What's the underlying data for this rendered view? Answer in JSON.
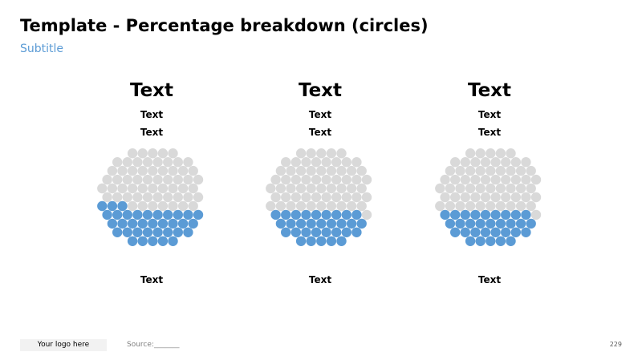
{
  "title": "Template - Percentage breakdown (circles)",
  "subtitle": "Subtitle",
  "colors": {
    "filled": "#5b9bd5",
    "empty": "#d9d9d9",
    "subtitle": "#5b9bd5"
  },
  "columns": [
    {
      "heading": "Text",
      "line1": "Text",
      "line2": "Text",
      "footer": "Text",
      "filled_fraction": 0.37
    },
    {
      "heading": "Text",
      "line1": "Text",
      "line2": "Text",
      "footer": "Text",
      "filled_fraction": 0.33
    },
    {
      "heading": "Text",
      "line1": "Text",
      "line2": "Text",
      "footer": "Text",
      "filled_fraction": 0.33
    }
  ],
  "footer": {
    "logo": "Your logo here",
    "source": "Source:_______",
    "page_number": "229"
  }
}
